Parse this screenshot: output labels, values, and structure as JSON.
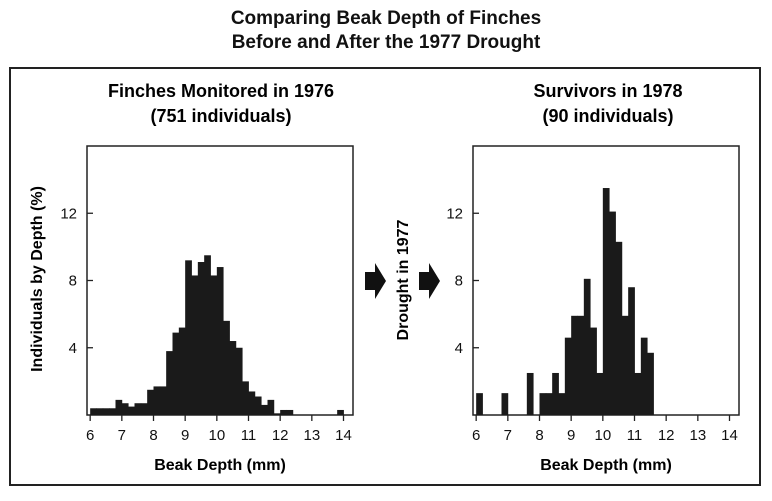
{
  "title_line1": "Comparing Beak Depth of Finches",
  "title_line2": "Before and After the 1977 Drought",
  "middle_label": "Drought in 1977",
  "chart_data": [
    {
      "type": "bar",
      "title_line1": "Finches Monitored in 1976",
      "title_line2": "(751 individuals)",
      "xlabel": "Beak Depth (mm)",
      "ylabel": "Individuals by Depth (%)",
      "xlim": [
        5.9,
        14.3
      ],
      "ylim": [
        0,
        16
      ],
      "xticks": [
        6,
        7,
        8,
        9,
        10,
        11,
        12,
        13,
        14
      ],
      "yticks": [
        4,
        8,
        12
      ],
      "bin_width": 0.2,
      "x": [
        6.0,
        6.2,
        6.4,
        6.6,
        6.8,
        7.0,
        7.2,
        7.4,
        7.6,
        7.8,
        8.0,
        8.2,
        8.4,
        8.6,
        8.8,
        9.0,
        9.2,
        9.4,
        9.6,
        9.8,
        10.0,
        10.2,
        10.4,
        10.6,
        10.8,
        11.0,
        11.2,
        11.4,
        11.6,
        11.8,
        12.0,
        12.2,
        13.8
      ],
      "values": [
        0.4,
        0.4,
        0.4,
        0.4,
        0.9,
        0.7,
        0.5,
        0.7,
        0.7,
        1.5,
        1.7,
        1.7,
        3.8,
        4.9,
        5.2,
        9.2,
        8.3,
        9.1,
        9.5,
        8.3,
        8.8,
        5.6,
        4.4,
        4.0,
        2.0,
        1.4,
        1.1,
        0.6,
        0.9,
        0.1,
        0.3,
        0.3,
        0.3
      ]
    },
    {
      "type": "bar",
      "title_line1": "Survivors in 1978",
      "title_line2": "(90 individuals)",
      "xlabel": "Beak Depth (mm)",
      "ylabel": "",
      "xlim": [
        5.9,
        14.3
      ],
      "ylim": [
        0,
        16
      ],
      "xticks": [
        6,
        7,
        8,
        9,
        10,
        11,
        12,
        13,
        14
      ],
      "yticks": [
        4,
        8,
        12
      ],
      "bin_width": 0.2,
      "x": [
        6.0,
        6.8,
        7.6,
        8.0,
        8.2,
        8.4,
        8.6,
        8.8,
        9.0,
        9.2,
        9.4,
        9.6,
        9.8,
        10.0,
        10.2,
        10.4,
        10.6,
        10.8,
        11.0,
        11.2,
        11.4,
        11.6
      ],
      "values": [
        1.3,
        1.3,
        2.5,
        1.3,
        1.3,
        2.5,
        1.3,
        4.6,
        5.9,
        5.9,
        8.1,
        5.2,
        2.5,
        13.5,
        12.1,
        10.3,
        5.9,
        7.6,
        2.5,
        4.6,
        3.7,
        0.0
      ]
    }
  ]
}
